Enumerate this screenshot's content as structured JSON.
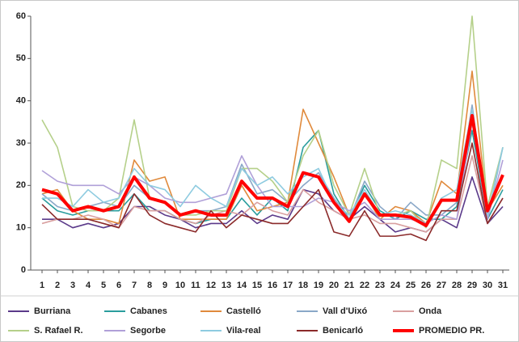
{
  "chart_data": {
    "type": "line",
    "x": [
      1,
      2,
      3,
      4,
      5,
      6,
      7,
      8,
      9,
      10,
      11,
      12,
      13,
      14,
      15,
      16,
      17,
      18,
      19,
      20,
      21,
      22,
      23,
      24,
      25,
      26,
      27,
      28,
      29,
      30,
      31
    ],
    "xlim": [
      1,
      31
    ],
    "ylim": [
      0,
      60
    ],
    "yticks": [
      0,
      10,
      20,
      30,
      40,
      50,
      60
    ],
    "series": [
      {
        "name": "Burriana",
        "color": "#5b3a8a",
        "values": [
          12,
          12,
          10,
          11,
          10,
          11,
          15,
          15,
          13,
          12,
          10,
          11,
          11,
          14,
          11,
          13,
          12,
          19,
          18,
          14,
          12,
          15,
          12,
          9,
          10,
          9,
          12,
          10,
          22,
          11,
          15
        ]
      },
      {
        "name": "Cabanes",
        "color": "#2a9d9d",
        "values": [
          17,
          14,
          13,
          14,
          14,
          14,
          18,
          14,
          14,
          12,
          11,
          12,
          12,
          17,
          13,
          17,
          14,
          29,
          33,
          18,
          12,
          20,
          14,
          12,
          14,
          12,
          12,
          15,
          33,
          12,
          19
        ]
      },
      {
        "name": "Castelló",
        "color": "#e08a3c",
        "values": [
          18,
          19,
          14,
          12,
          12,
          11,
          26,
          21,
          22,
          12,
          12,
          12,
          12,
          20,
          14,
          15,
          16,
          38,
          30,
          22,
          13,
          18,
          12,
          15,
          14,
          11,
          21,
          18,
          47,
          14,
          20
        ]
      },
      {
        "name": "Vall d'Uixó",
        "color": "#8aa8c8",
        "values": [
          18,
          15,
          14,
          15,
          16,
          15,
          20,
          17,
          16,
          13,
          14,
          14,
          15,
          25,
          18,
          19,
          16,
          20,
          23,
          17,
          12,
          21,
          15,
          12,
          16,
          13,
          13,
          16,
          39,
          12,
          29
        ]
      },
      {
        "name": "Onda",
        "color": "#d9a0a0",
        "values": [
          11,
          12,
          12,
          13,
          12,
          10,
          15,
          14,
          14,
          12,
          11,
          13,
          14,
          13,
          16,
          14,
          13,
          19,
          16,
          14,
          12,
          13,
          11,
          11,
          10,
          9,
          12,
          12,
          27,
          11,
          17
        ]
      },
      {
        "name": "S. Rafael R.",
        "color": "#b5d08a",
        "values": [
          35.5,
          29,
          15,
          14,
          14,
          17,
          35.5,
          17,
          16,
          13,
          13,
          14,
          14,
          24,
          24,
          21,
          16,
          27,
          33,
          20,
          13,
          24,
          13,
          13,
          14,
          10,
          26,
          24,
          60,
          15,
          29
        ]
      },
      {
        "name": "Segorbe",
        "color": "#b0a0d8",
        "values": [
          23.5,
          21,
          20,
          20,
          20,
          18,
          22,
          20,
          17,
          16,
          16,
          17,
          18,
          27,
          20,
          15,
          15,
          15,
          17,
          16,
          14,
          16,
          12,
          12,
          12,
          11,
          13,
          12,
          35,
          12,
          26
        ]
      },
      {
        "name": "Vila-real",
        "color": "#8ecbe0",
        "values": [
          17,
          17,
          15,
          19,
          16,
          17,
          24,
          20,
          19,
          15,
          20,
          17,
          15,
          24,
          20,
          22,
          18,
          22,
          24,
          16,
          13,
          19,
          13,
          14,
          13,
          11,
          17,
          19,
          38,
          13,
          29
        ]
      },
      {
        "name": "Benicarló",
        "color": "#8b2a2a",
        "values": [
          15.5,
          12,
          12,
          12,
          11,
          10,
          18,
          13,
          11,
          10,
          9,
          14,
          10,
          13,
          12,
          11,
          11,
          15,
          19,
          9,
          8,
          14,
          8,
          8,
          8.5,
          7,
          14,
          14,
          30,
          11,
          17
        ]
      },
      {
        "name": "PROMEDIO PR.",
        "color": "#ff0000",
        "values": [
          19,
          18,
          14,
          15,
          14,
          15,
          22,
          17,
          16,
          13,
          14,
          13,
          13,
          21,
          17,
          17,
          15,
          23,
          22,
          16,
          11.5,
          18,
          13,
          13,
          12.5,
          10.5,
          16.5,
          16.5,
          36.5,
          14,
          22.5
        ]
      }
    ]
  }
}
